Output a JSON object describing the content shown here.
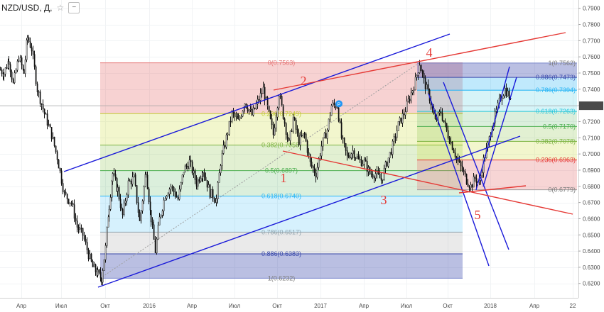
{
  "toolbar": {
    "ticker": "NZD/USD, Д,",
    "star": "☆",
    "minus_label": "−"
  },
  "price_tag": "0.7298",
  "chart_data": {
    "type": "candlestick",
    "title": "NZD/USD, Д,",
    "ylim": [
      0.6155,
      0.7925
    ],
    "y_ticks": [
      "0.6200",
      "0.6300",
      "0.6400",
      "0.6500",
      "0.6600",
      "0.6700",
      "0.6800",
      "0.6900",
      "0.7000",
      "0.7100",
      "0.7200",
      "0.7300",
      "0.7400",
      "0.7500",
      "0.7600",
      "0.7700",
      "0.7800",
      "0.7900"
    ],
    "x_ticks": [
      "Апр",
      "Июл",
      "Окт",
      "2016",
      "Апр",
      "Июл",
      "Окт",
      "2017",
      "Апр",
      "Июл",
      "Окт",
      "2018",
      "Апр",
      "22"
    ],
    "last_price": 0.7298,
    "price_path": [
      [
        0,
        0.752
      ],
      [
        5,
        0.75
      ],
      [
        12,
        0.758
      ],
      [
        18,
        0.743
      ],
      [
        26,
        0.76
      ],
      [
        33,
        0.75
      ],
      [
        38,
        0.772
      ],
      [
        44,
        0.765
      ],
      [
        52,
        0.74
      ],
      [
        62,
        0.725
      ],
      [
        72,
        0.712
      ],
      [
        80,
        0.698
      ],
      [
        90,
        0.675
      ],
      [
        100,
        0.67
      ],
      [
        108,
        0.655
      ],
      [
        116,
        0.65
      ],
      [
        124,
        0.638
      ],
      [
        130,
        0.63
      ],
      [
        137,
        0.626
      ],
      [
        142,
        0.6232
      ],
      [
        148,
        0.642
      ],
      [
        153,
        0.668
      ],
      [
        158,
        0.688
      ],
      [
        165,
        0.678
      ],
      [
        172,
        0.662
      ],
      [
        180,
        0.682
      ],
      [
        188,
        0.685
      ],
      [
        196,
        0.658
      ],
      [
        205,
        0.69
      ],
      [
        212,
        0.66
      ],
      [
        218,
        0.64
      ],
      [
        224,
        0.66
      ],
      [
        232,
        0.675
      ],
      [
        240,
        0.68
      ],
      [
        250,
        0.672
      ],
      [
        258,
        0.69
      ],
      [
        266,
        0.695
      ],
      [
        276,
        0.682
      ],
      [
        285,
        0.69
      ],
      [
        295,
        0.676
      ],
      [
        304,
        0.672
      ],
      [
        310,
        0.695
      ],
      [
        318,
        0.71
      ],
      [
        326,
        0.725
      ],
      [
        335,
        0.72
      ],
      [
        344,
        0.732
      ],
      [
        354,
        0.724
      ],
      [
        362,
        0.732
      ],
      [
        370,
        0.74
      ],
      [
        376,
        0.728
      ],
      [
        384,
        0.712
      ],
      [
        392,
        0.738
      ],
      [
        398,
        0.724
      ],
      [
        406,
        0.706
      ],
      [
        412,
        0.722
      ],
      [
        420,
        0.708
      ],
      [
        428,
        0.712
      ],
      [
        436,
        0.694
      ],
      [
        444,
        0.688
      ],
      [
        452,
        0.705
      ],
      [
        460,
        0.715
      ],
      [
        466,
        0.73
      ],
      [
        474,
        0.73
      ],
      [
        480,
        0.71
      ],
      [
        488,
        0.698
      ],
      [
        496,
        0.702
      ],
      [
        504,
        0.696
      ],
      [
        512,
        0.695
      ],
      [
        520,
        0.688
      ],
      [
        528,
        0.688
      ],
      [
        536,
        0.684
      ],
      [
        544,
        0.695
      ],
      [
        552,
        0.705
      ],
      [
        560,
        0.718
      ],
      [
        568,
        0.725
      ],
      [
        576,
        0.735
      ],
      [
        584,
        0.745
      ],
      [
        590,
        0.7563
      ],
      [
        596,
        0.745
      ],
      [
        604,
        0.735
      ],
      [
        612,
        0.72
      ],
      [
        620,
        0.726
      ],
      [
        628,
        0.714
      ],
      [
        636,
        0.705
      ],
      [
        644,
        0.695
      ],
      [
        650,
        0.69
      ],
      [
        656,
        0.684
      ],
      [
        662,
        0.68
      ],
      [
        668,
        0.685
      ],
      [
        674,
        0.682
      ],
      [
        680,
        0.696
      ],
      [
        686,
        0.705
      ],
      [
        692,
        0.718
      ],
      [
        698,
        0.726
      ],
      [
        704,
        0.735
      ],
      [
        710,
        0.74
      ],
      [
        716,
        0.736
      ],
      [
        719,
        0.7298
      ]
    ],
    "fibonacci": [
      {
        "label": "0(0.7563)",
        "ratio": "0",
        "value": 0.7563
      },
      {
        "label": "0.236(0.7249)",
        "ratio": "0.236",
        "value": 0.7249
      },
      {
        "label": "0.382(0.7055)",
        "ratio": "0.382",
        "value": 0.7055
      },
      {
        "label": "0.5(0.6897)",
        "ratio": "0.5",
        "value": 0.6897
      },
      {
        "label": "0.618(0.6740)",
        "ratio": "0.618",
        "value": 0.674
      },
      {
        "label": "0.786(0.6517)",
        "ratio": "0.786",
        "value": 0.6517
      },
      {
        "label": "0.886(0.6383)",
        "ratio": "0.886",
        "value": 0.6383
      },
      {
        "label": "1(0.6232)",
        "ratio": "1",
        "value": 0.6232
      }
    ],
    "fibonacci_2": [
      {
        "label": "1(0.7562)",
        "ratio": "1",
        "value": 0.7562
      },
      {
        "label": "0.886(0.7473)",
        "ratio": "0.886",
        "value": 0.7473
      },
      {
        "label": "0.786(0.7394)",
        "ratio": "0.786",
        "value": 0.7394
      },
      {
        "label": "0.618(0.7263)",
        "ratio": "0.618",
        "value": 0.7263
      },
      {
        "label": "0.5(0.7170)",
        "ratio": "0.5",
        "value": 0.717
      },
      {
        "label": "0.382(0.7078)",
        "ratio": "0.382",
        "value": 0.7078
      },
      {
        "label": "0.236(0.6963)",
        "ratio": "0.236",
        "value": 0.6963
      },
      {
        "label": "0(0.6779)",
        "ratio": "0",
        "value": 0.6779
      }
    ],
    "wave_labels": [
      "1",
      "2",
      "3",
      "4",
      "5"
    ],
    "trendlines": {
      "red": 3,
      "blue": 5
    }
  }
}
